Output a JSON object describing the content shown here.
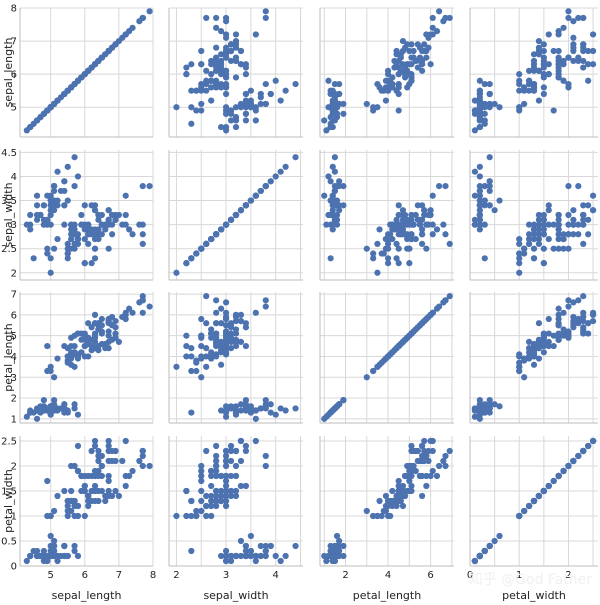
{
  "watermark": "知乎 @God Father",
  "chart_data": {
    "type": "scatter",
    "subtype": "pairplot",
    "variables": [
      "sepal_length",
      "sepal_width",
      "petal_length",
      "petal_width"
    ],
    "axes": {
      "sepal_length": {
        "label": "sepal_length",
        "range": [
          4.1,
          8.0
        ],
        "ticks": [
          5,
          6,
          7,
          8
        ]
      },
      "sepal_width": {
        "label": "sepal_width",
        "range": [
          1.85,
          4.55
        ],
        "ticks": [
          2.0,
          2.5,
          3.0,
          3.5,
          4.0,
          4.5
        ],
        "tick_labels_x": [
          2,
          3,
          4
        ]
      },
      "petal_length": {
        "label": "petal_length",
        "range": [
          0.8,
          7.1
        ],
        "ticks": [
          1,
          2,
          3,
          4,
          5,
          6,
          7
        ],
        "tick_labels_x": [
          2,
          4,
          6
        ]
      },
      "petal_width": {
        "label": "petal_width",
        "range": [
          0.0,
          2.6
        ],
        "ticks": [
          0.0,
          0.5,
          1.0,
          1.5,
          2.0,
          2.5
        ],
        "tick_labels_x": [
          0,
          1,
          2
        ]
      }
    },
    "grid": true,
    "marker_color": "#4c72b0",
    "points": [
      [
        5.1,
        3.5,
        1.4,
        0.2
      ],
      [
        4.9,
        3.0,
        1.4,
        0.2
      ],
      [
        4.7,
        3.2,
        1.3,
        0.2
      ],
      [
        4.6,
        3.1,
        1.5,
        0.2
      ],
      [
        5.0,
        3.6,
        1.4,
        0.2
      ],
      [
        5.4,
        3.9,
        1.7,
        0.4
      ],
      [
        4.6,
        3.4,
        1.4,
        0.3
      ],
      [
        5.0,
        3.4,
        1.5,
        0.2
      ],
      [
        4.4,
        2.9,
        1.4,
        0.2
      ],
      [
        4.9,
        3.1,
        1.5,
        0.1
      ],
      [
        5.4,
        3.7,
        1.5,
        0.2
      ],
      [
        4.8,
        3.4,
        1.6,
        0.2
      ],
      [
        4.8,
        3.0,
        1.4,
        0.1
      ],
      [
        4.3,
        3.0,
        1.1,
        0.1
      ],
      [
        5.8,
        4.0,
        1.2,
        0.2
      ],
      [
        5.7,
        4.4,
        1.5,
        0.4
      ],
      [
        5.4,
        3.9,
        1.3,
        0.4
      ],
      [
        5.1,
        3.5,
        1.4,
        0.3
      ],
      [
        5.7,
        3.8,
        1.7,
        0.3
      ],
      [
        5.1,
        3.8,
        1.5,
        0.3
      ],
      [
        5.4,
        3.4,
        1.7,
        0.2
      ],
      [
        5.1,
        3.7,
        1.5,
        0.4
      ],
      [
        4.6,
        3.6,
        1.0,
        0.2
      ],
      [
        5.1,
        3.3,
        1.7,
        0.5
      ],
      [
        4.8,
        3.4,
        1.9,
        0.2
      ],
      [
        5.0,
        3.0,
        1.6,
        0.2
      ],
      [
        5.0,
        3.4,
        1.6,
        0.4
      ],
      [
        5.2,
        3.5,
        1.5,
        0.2
      ],
      [
        5.2,
        3.4,
        1.4,
        0.2
      ],
      [
        4.7,
        3.2,
        1.6,
        0.2
      ],
      [
        4.8,
        3.1,
        1.6,
        0.2
      ],
      [
        5.4,
        3.4,
        1.5,
        0.4
      ],
      [
        5.2,
        4.1,
        1.5,
        0.1
      ],
      [
        5.5,
        4.2,
        1.4,
        0.2
      ],
      [
        4.9,
        3.1,
        1.5,
        0.2
      ],
      [
        5.0,
        3.2,
        1.2,
        0.2
      ],
      [
        5.5,
        3.5,
        1.3,
        0.2
      ],
      [
        4.9,
        3.6,
        1.4,
        0.1
      ],
      [
        4.4,
        3.0,
        1.3,
        0.2
      ],
      [
        5.1,
        3.4,
        1.5,
        0.2
      ],
      [
        5.0,
        3.5,
        1.3,
        0.3
      ],
      [
        4.5,
        2.3,
        1.3,
        0.3
      ],
      [
        4.4,
        3.2,
        1.3,
        0.2
      ],
      [
        5.0,
        3.5,
        1.6,
        0.6
      ],
      [
        5.1,
        3.8,
        1.9,
        0.4
      ],
      [
        4.8,
        3.0,
        1.4,
        0.3
      ],
      [
        5.1,
        3.8,
        1.6,
        0.2
      ],
      [
        4.6,
        3.2,
        1.4,
        0.2
      ],
      [
        5.3,
        3.7,
        1.5,
        0.2
      ],
      [
        5.0,
        3.3,
        1.4,
        0.2
      ],
      [
        7.0,
        3.2,
        4.7,
        1.4
      ],
      [
        6.4,
        3.2,
        4.5,
        1.5
      ],
      [
        6.9,
        3.1,
        4.9,
        1.5
      ],
      [
        5.5,
        2.3,
        4.0,
        1.3
      ],
      [
        6.5,
        2.8,
        4.6,
        1.5
      ],
      [
        5.7,
        2.8,
        4.5,
        1.3
      ],
      [
        6.3,
        3.3,
        4.7,
        1.6
      ],
      [
        4.9,
        2.4,
        3.3,
        1.0
      ],
      [
        6.6,
        2.9,
        4.6,
        1.3
      ],
      [
        5.2,
        2.7,
        3.9,
        1.4
      ],
      [
        5.0,
        2.0,
        3.5,
        1.0
      ],
      [
        5.9,
        3.0,
        4.2,
        1.5
      ],
      [
        6.0,
        2.2,
        4.0,
        1.0
      ],
      [
        6.1,
        2.9,
        4.7,
        1.4
      ],
      [
        5.6,
        2.9,
        3.6,
        1.3
      ],
      [
        6.7,
        3.1,
        4.4,
        1.4
      ],
      [
        5.6,
        3.0,
        4.5,
        1.5
      ],
      [
        5.8,
        2.7,
        4.1,
        1.0
      ],
      [
        6.2,
        2.2,
        4.5,
        1.5
      ],
      [
        5.6,
        2.5,
        3.9,
        1.1
      ],
      [
        5.9,
        3.2,
        4.8,
        1.8
      ],
      [
        6.1,
        2.8,
        4.0,
        1.3
      ],
      [
        6.3,
        2.5,
        4.9,
        1.5
      ],
      [
        6.1,
        2.8,
        4.7,
        1.2
      ],
      [
        6.4,
        2.9,
        4.3,
        1.3
      ],
      [
        6.6,
        3.0,
        4.4,
        1.4
      ],
      [
        6.8,
        2.8,
        4.8,
        1.4
      ],
      [
        6.7,
        3.0,
        5.0,
        1.7
      ],
      [
        6.0,
        2.9,
        4.5,
        1.5
      ],
      [
        5.7,
        2.6,
        3.5,
        1.0
      ],
      [
        5.5,
        2.4,
        3.8,
        1.1
      ],
      [
        5.5,
        2.4,
        3.7,
        1.0
      ],
      [
        5.8,
        2.7,
        3.9,
        1.2
      ],
      [
        6.0,
        2.7,
        5.1,
        1.6
      ],
      [
        5.4,
        3.0,
        4.5,
        1.5
      ],
      [
        6.0,
        3.4,
        4.5,
        1.6
      ],
      [
        6.7,
        3.1,
        4.7,
        1.5
      ],
      [
        6.3,
        2.3,
        4.4,
        1.3
      ],
      [
        5.6,
        3.0,
        4.1,
        1.3
      ],
      [
        5.5,
        2.5,
        4.0,
        1.3
      ],
      [
        5.5,
        2.6,
        4.4,
        1.2
      ],
      [
        6.1,
        3.0,
        4.6,
        1.4
      ],
      [
        5.8,
        2.6,
        4.0,
        1.2
      ],
      [
        5.0,
        2.3,
        3.3,
        1.0
      ],
      [
        5.6,
        2.7,
        4.2,
        1.3
      ],
      [
        5.7,
        3.0,
        4.2,
        1.2
      ],
      [
        5.7,
        2.9,
        4.2,
        1.3
      ],
      [
        6.2,
        2.9,
        4.3,
        1.3
      ],
      [
        5.1,
        2.5,
        3.0,
        1.1
      ],
      [
        5.7,
        2.8,
        4.1,
        1.3
      ],
      [
        6.3,
        3.3,
        6.0,
        2.5
      ],
      [
        5.8,
        2.7,
        5.1,
        1.9
      ],
      [
        7.1,
        3.0,
        5.9,
        2.1
      ],
      [
        6.3,
        2.9,
        5.6,
        1.8
      ],
      [
        6.5,
        3.0,
        5.8,
        2.2
      ],
      [
        7.6,
        3.0,
        6.6,
        2.1
      ],
      [
        4.9,
        2.5,
        4.5,
        1.7
      ],
      [
        7.3,
        2.9,
        6.3,
        1.8
      ],
      [
        6.7,
        2.5,
        5.8,
        1.8
      ],
      [
        7.2,
        3.6,
        6.1,
        2.5
      ],
      [
        6.5,
        3.2,
        5.1,
        2.0
      ],
      [
        6.4,
        2.7,
        5.3,
        1.9
      ],
      [
        6.8,
        3.0,
        5.5,
        2.1
      ],
      [
        5.7,
        2.5,
        5.0,
        2.0
      ],
      [
        5.8,
        2.8,
        5.1,
        2.4
      ],
      [
        6.4,
        3.2,
        5.3,
        2.3
      ],
      [
        6.5,
        3.0,
        5.5,
        1.8
      ],
      [
        7.7,
        3.8,
        6.7,
        2.2
      ],
      [
        7.7,
        2.6,
        6.9,
        2.3
      ],
      [
        6.0,
        2.2,
        5.0,
        1.5
      ],
      [
        6.9,
        3.2,
        5.7,
        2.3
      ],
      [
        5.6,
        2.8,
        4.9,
        2.0
      ],
      [
        7.7,
        2.8,
        6.7,
        2.0
      ],
      [
        6.3,
        2.7,
        4.9,
        1.8
      ],
      [
        6.7,
        3.3,
        5.7,
        2.1
      ],
      [
        7.2,
        3.2,
        6.0,
        1.8
      ],
      [
        6.2,
        2.8,
        4.8,
        1.8
      ],
      [
        6.1,
        3.0,
        4.9,
        1.8
      ],
      [
        6.4,
        2.8,
        5.6,
        2.1
      ],
      [
        7.2,
        3.0,
        5.8,
        1.6
      ],
      [
        7.4,
        2.8,
        6.1,
        1.9
      ],
      [
        7.9,
        3.8,
        6.4,
        2.0
      ],
      [
        6.4,
        2.8,
        5.6,
        2.2
      ],
      [
        6.3,
        2.8,
        5.1,
        1.5
      ],
      [
        6.1,
        2.6,
        5.6,
        1.4
      ],
      [
        7.7,
        3.0,
        6.1,
        2.3
      ],
      [
        6.3,
        3.4,
        5.6,
        2.4
      ],
      [
        6.4,
        3.1,
        5.5,
        1.8
      ],
      [
        6.0,
        3.0,
        4.8,
        1.8
      ],
      [
        6.9,
        3.1,
        5.4,
        2.1
      ],
      [
        6.7,
        3.1,
        5.6,
        2.4
      ],
      [
        6.9,
        3.1,
        5.1,
        2.3
      ],
      [
        5.8,
        2.7,
        5.1,
        1.9
      ],
      [
        6.8,
        3.2,
        5.9,
        2.3
      ],
      [
        6.7,
        3.3,
        5.7,
        2.5
      ],
      [
        6.7,
        3.0,
        5.2,
        2.3
      ],
      [
        6.3,
        2.5,
        5.0,
        1.9
      ],
      [
        6.5,
        3.0,
        5.2,
        2.0
      ],
      [
        6.2,
        3.4,
        5.4,
        2.3
      ],
      [
        5.9,
        3.0,
        5.1,
        1.8
      ]
    ]
  }
}
